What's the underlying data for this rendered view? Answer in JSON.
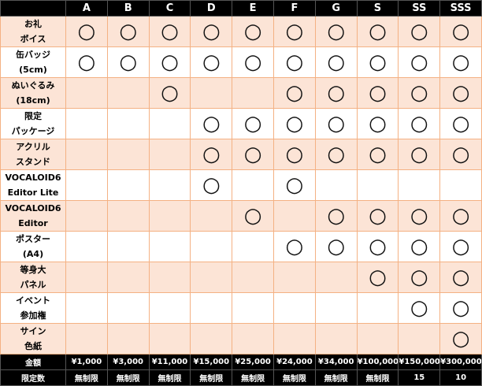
{
  "table": {
    "header": [
      "A",
      "B",
      "C",
      "D",
      "E",
      "F",
      "G",
      "S",
      "SS",
      "SSS"
    ],
    "rows": [
      {
        "label": [
          "お礼",
          "ボイス"
        ],
        "cells": [
          "○",
          "○",
          "○",
          "○",
          "○",
          "○",
          "○",
          "○",
          "○",
          "○"
        ]
      },
      {
        "label": [
          "缶バッジ",
          "(5cm)"
        ],
        "cells": [
          "○",
          "○",
          "○",
          "○",
          "○",
          "○",
          "○",
          "○",
          "○",
          "○"
        ]
      },
      {
        "label": [
          "ぬいぐるみ",
          "(18cm)"
        ],
        "cells": [
          null,
          null,
          "○",
          null,
          null,
          "○",
          "○",
          "○",
          "○",
          "○"
        ]
      },
      {
        "label": [
          "限定",
          "パッケージ"
        ],
        "cells": [
          null,
          null,
          null,
          "○",
          "○",
          "○",
          "○",
          "○",
          "○",
          "○"
        ]
      },
      {
        "label": [
          "アクリル",
          "スタンド"
        ],
        "cells": [
          null,
          null,
          null,
          "○",
          "○",
          "○",
          "○",
          "○",
          "○",
          "○"
        ]
      },
      {
        "label": [
          "VOCALOID6",
          "Editor Lite"
        ],
        "cells": [
          null,
          null,
          null,
          "○",
          null,
          "○",
          null,
          null,
          null,
          null
        ]
      },
      {
        "label": [
          "VOCALOID6",
          "Editor"
        ],
        "cells": [
          null,
          null,
          null,
          null,
          "○",
          null,
          "○",
          "○",
          "○",
          "○"
        ]
      },
      {
        "label": [
          "ポスター",
          "(A4)"
        ],
        "cells": [
          null,
          null,
          null,
          null,
          null,
          "○",
          "○",
          "○",
          "○",
          "○"
        ]
      },
      {
        "label": [
          "等身大",
          "パネル"
        ],
        "cells": [
          null,
          null,
          null,
          null,
          null,
          null,
          null,
          "○",
          "○",
          "○"
        ]
      },
      {
        "label": [
          "イベント",
          "参加権"
        ],
        "cells": [
          null,
          null,
          null,
          null,
          null,
          null,
          null,
          null,
          "○",
          "○"
        ]
      },
      {
        "label": [
          "サイン",
          "色紙"
        ],
        "cells": [
          null,
          null,
          null,
          null,
          null,
          null,
          null,
          null,
          null,
          "○"
        ]
      }
    ],
    "footer": [
      {
        "label": "金額",
        "cells": [
          "¥1,000",
          "¥3,000",
          "¥11,000",
          "¥15,000",
          "¥25,000",
          "¥24,000",
          "¥34,000",
          "¥100,000",
          "¥150,000",
          "¥300,000"
        ]
      },
      {
        "label": "限定数",
        "cells": [
          "無制限",
          "無制限",
          "無制限",
          "無制限",
          "無制限",
          "無制限",
          "無制限",
          "無制限",
          15,
          10
        ]
      }
    ]
  }
}
